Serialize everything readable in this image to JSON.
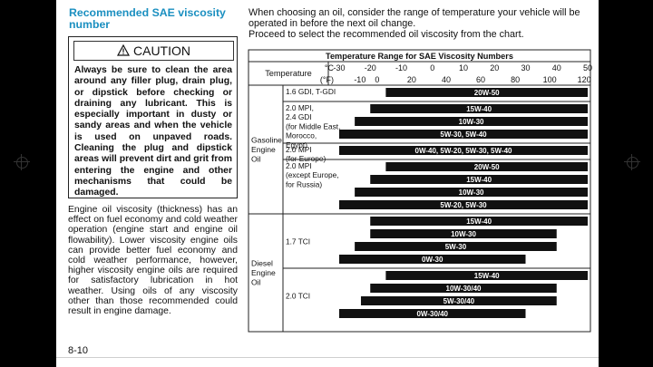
{
  "heading": "Recommended SAE viscosity number",
  "caution": {
    "title": "CAUTION",
    "text": "Always be sure to clean the area around any filler plug, drain plug, or dipstick before checking or draining any lubricant. This is especially important in dusty or sandy areas and when the vehicle is used on unpaved roads. Cleaning the plug and dipstick areas will prevent dirt and grit from entering the engine and other mechanisms that could be damaged."
  },
  "body_text": "Engine oil viscosity (thickness) has an effect on fuel economy and cold weather operation (engine start and engine oil flowability). Lower viscosity engine oils can provide better fuel economy and cold weather performance, however, higher viscosity engine oils are required for satisfactory lubrication in hot weather. Using oils of any viscosity other than those recommended could result in engine damage.",
  "intro_line1": "When choosing an oil, consider the range of temperature your vehicle will be operated in before the next oil change.",
  "intro_line2": "Proceed to select the recommended oil viscosity from the chart.",
  "page_number": "8-10",
  "chart_data": {
    "type": "table",
    "title": "Temperature Range for SAE Viscosity Numbers",
    "header_label": "Temperature",
    "celsius_unit": "°C",
    "fahrenheit_unit": "(°F)",
    "celsius_ticks": [
      "-30",
      "-20",
      "-10",
      "0",
      "10",
      "20",
      "30",
      "40",
      "50"
    ],
    "fahrenheit_ticks": [
      "-10",
      "0",
      "20",
      "40",
      "60",
      "80",
      "100",
      "120"
    ],
    "celsius_range": [
      -30,
      50
    ],
    "groups": [
      {
        "label": [
          "Gasoline",
          "Engine",
          "Oil"
        ],
        "subgroups": [
          {
            "label": [
              "1.6 GDI, T-GDI"
            ],
            "bars": [
              {
                "grade": "20W-50",
                "from_c": -15,
                "to_c": 50
              }
            ]
          },
          {
            "label": [
              "2.0 MPI,",
              "2.4 GDI",
              "(for Middle East,",
              "Morocco,",
              "Egypt)"
            ],
            "bars": [
              {
                "grade": "15W-40",
                "from_c": -20,
                "to_c": 50
              },
              {
                "grade": "10W-30",
                "from_c": -25,
                "to_c": 50
              },
              {
                "grade": "5W-30, 5W-40",
                "from_c": -30,
                "to_c": 50
              }
            ]
          },
          {
            "label": [
              "2.0 MPI",
              "(for Europe)"
            ],
            "bars": [
              {
                "grade": "0W-40, 5W-20, 5W-30, 5W-40",
                "from_c": -30,
                "to_c": 50
              }
            ]
          },
          {
            "label": [
              "2.0 MPI",
              "(except Europe,",
              "for Russia)"
            ],
            "bars": [
              {
                "grade": "20W-50",
                "from_c": -15,
                "to_c": 50
              },
              {
                "grade": "15W-40",
                "from_c": -20,
                "to_c": 50
              },
              {
                "grade": "10W-30",
                "from_c": -25,
                "to_c": 50
              },
              {
                "grade": "5W-20, 5W-30",
                "from_c": -30,
                "to_c": 50
              }
            ]
          }
        ]
      },
      {
        "label": [
          "Diesel",
          "Engine",
          "Oil"
        ],
        "subgroups": [
          {
            "label": [
              "1.7 TCI"
            ],
            "bars": [
              {
                "grade": "15W-40",
                "from_c": -20,
                "to_c": 50
              },
              {
                "grade": "10W-30",
                "from_c": -20,
                "to_c": 40
              },
              {
                "grade": "5W-30",
                "from_c": -25,
                "to_c": 40
              },
              {
                "grade": "0W-30",
                "from_c": -30,
                "to_c": 30
              }
            ]
          },
          {
            "label": [
              "2.0 TCI"
            ],
            "bars": [
              {
                "grade": "15W-40",
                "from_c": -15,
                "to_c": 50
              },
              {
                "grade": "10W-30/40",
                "from_c": -20,
                "to_c": 40
              },
              {
                "grade": "5W-30/40",
                "from_c": -23,
                "to_c": 40
              },
              {
                "grade": "0W-30/40",
                "from_c": -30,
                "to_c": 30
              }
            ]
          }
        ]
      }
    ]
  }
}
